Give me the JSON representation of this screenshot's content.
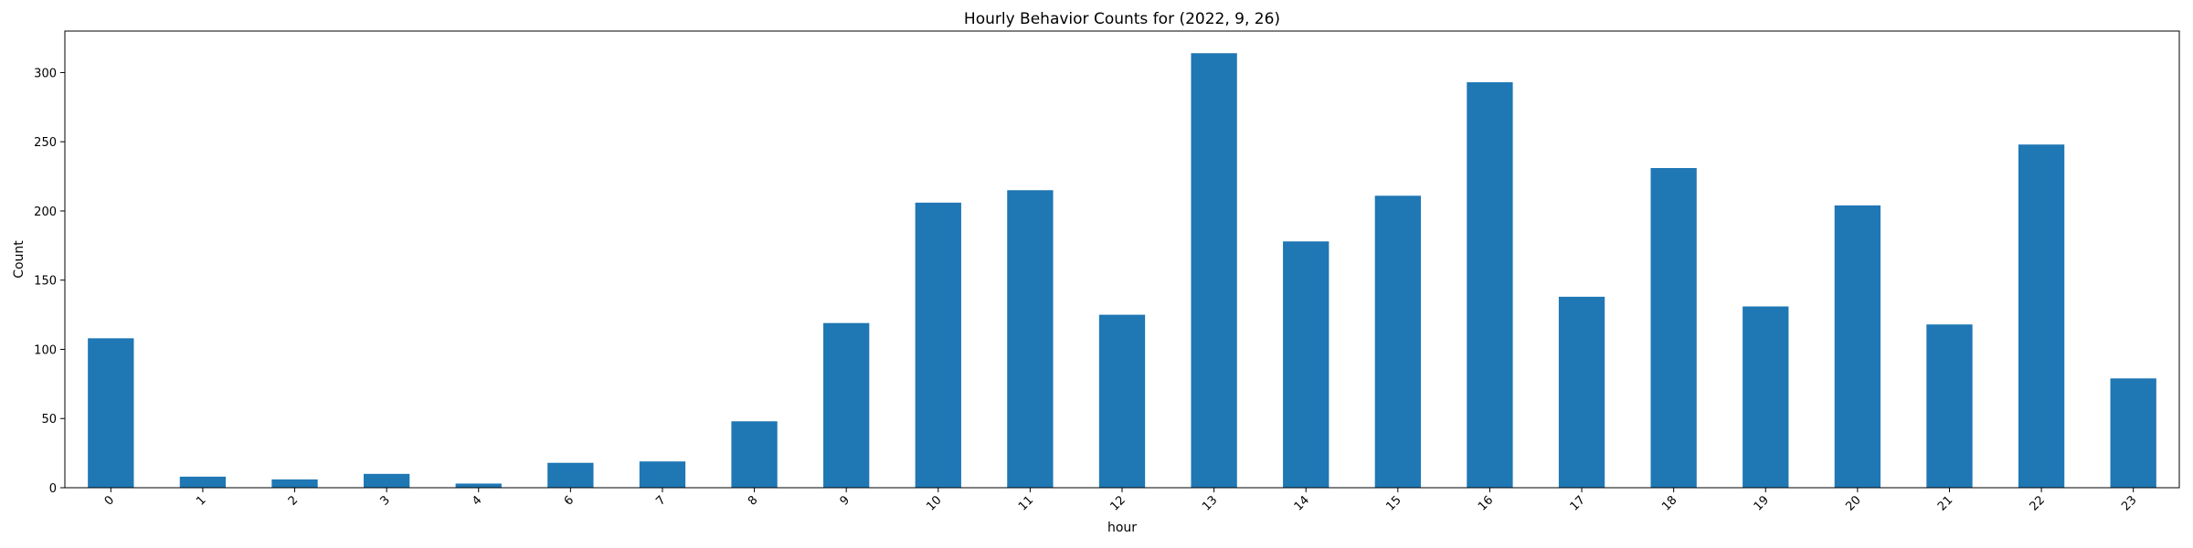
{
  "chart_data": {
    "type": "bar",
    "title": "Hourly Behavior Counts for (2022, 9, 26)",
    "xlabel": "hour",
    "ylabel": "Count",
    "categories": [
      "0",
      "1",
      "2",
      "3",
      "4",
      "6",
      "7",
      "8",
      "9",
      "10",
      "11",
      "12",
      "13",
      "14",
      "15",
      "16",
      "17",
      "18",
      "19",
      "20",
      "21",
      "22",
      "23"
    ],
    "values": [
      108,
      8,
      6,
      10,
      3,
      18,
      19,
      48,
      119,
      206,
      215,
      125,
      314,
      178,
      211,
      293,
      138,
      231,
      131,
      204,
      118,
      248,
      79
    ],
    "ylim": [
      0,
      330
    ],
    "yticks": [
      0,
      50,
      100,
      150,
      200,
      250,
      300
    ],
    "xtick_rotation": 45,
    "bar_color": "#1f77b4",
    "grid": false,
    "legend": "none"
  }
}
